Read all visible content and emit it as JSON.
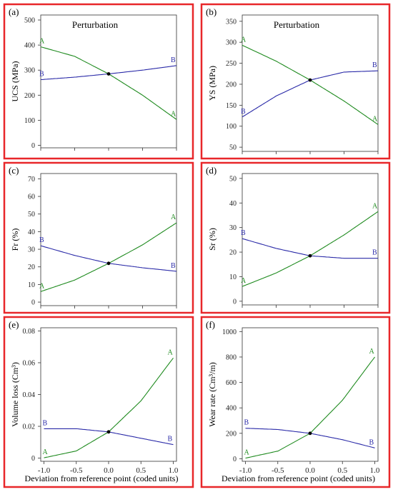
{
  "colors": {
    "frame": "#e8272a",
    "series_A": "#1e8a1e",
    "series_B": "#2a2aa8",
    "axis": "#333333",
    "center_point": "#000000"
  },
  "chart_data": [
    {
      "panel": "(a)",
      "type": "line",
      "title": "Perturbation",
      "xlabel": "",
      "ylabel": "UCS (MPa)",
      "xlim": [
        -1,
        1
      ],
      "ylim": [
        -10,
        520
      ],
      "xticks": [
        -1,
        -0.5,
        0,
        0.5,
        1
      ],
      "xticklabels": [],
      "yticks": [
        0,
        100,
        200,
        300,
        400,
        500
      ],
      "yticklabels": [
        "0",
        "100",
        "200",
        "300",
        "400",
        "500"
      ],
      "center_point": {
        "x": 0,
        "y": 285
      },
      "series": [
        {
          "name": "A",
          "x": [
            -1,
            -0.5,
            0,
            0.5,
            1
          ],
          "y": [
            393,
            355,
            285,
            200,
            103
          ]
        },
        {
          "name": "B",
          "x": [
            -1,
            -0.5,
            0,
            0.5,
            1
          ],
          "y": [
            262,
            272,
            285,
            300,
            318
          ]
        }
      ]
    },
    {
      "panel": "(b)",
      "type": "line",
      "title": "Perturbation",
      "xlabel": "",
      "ylabel": "YS (MPa)",
      "xlim": [
        -1,
        1
      ],
      "ylim": [
        40,
        365
      ],
      "xticks": [
        -1,
        -0.5,
        0,
        0.5,
        1
      ],
      "xticklabels": [],
      "yticks": [
        50,
        100,
        150,
        200,
        250,
        300,
        350
      ],
      "yticklabels": [
        "50",
        "100",
        "150",
        "200",
        "250",
        "300",
        "350"
      ],
      "center_point": {
        "x": 0,
        "y": 210
      },
      "series": [
        {
          "name": "A",
          "x": [
            -1,
            -0.5,
            0,
            0.5,
            1
          ],
          "y": [
            293,
            255,
            210,
            160,
            104
          ]
        },
        {
          "name": "B",
          "x": [
            -1,
            -0.5,
            0,
            0.5,
            1
          ],
          "y": [
            122,
            172,
            210,
            229,
            232
          ]
        }
      ]
    },
    {
      "panel": "(c)",
      "type": "line",
      "title": "",
      "xlabel": "",
      "ylabel": "Fr (%)",
      "xlim": [
        -1,
        1
      ],
      "ylim": [
        -2,
        73
      ],
      "xticks": [
        -1,
        -0.5,
        0,
        0.5,
        1
      ],
      "xticklabels": [],
      "yticks": [
        0,
        10,
        20,
        30,
        40,
        50,
        60,
        70
      ],
      "yticklabels": [
        "0",
        "10",
        "20",
        "30",
        "40",
        "50",
        "60",
        "70"
      ],
      "center_point": {
        "x": 0,
        "y": 22
      },
      "series": [
        {
          "name": "A",
          "x": [
            -1,
            -0.5,
            0,
            0.5,
            1
          ],
          "y": [
            6,
            12.5,
            22,
            32.5,
            45
          ]
        },
        {
          "name": "B",
          "x": [
            -1,
            -0.5,
            0,
            0.5,
            1
          ],
          "y": [
            32,
            26.5,
            22,
            19.5,
            17.5
          ]
        }
      ]
    },
    {
      "panel": "(d)",
      "type": "line",
      "title": "",
      "xlabel": "",
      "ylabel": "Sr (%)",
      "xlim": [
        -1,
        1
      ],
      "ylim": [
        -1.5,
        52
      ],
      "xticks": [
        -1,
        -0.5,
        0,
        0.5,
        1
      ],
      "xticklabels": [],
      "yticks": [
        0,
        10,
        20,
        30,
        40,
        50
      ],
      "yticklabels": [
        "0",
        "10",
        "20",
        "30",
        "40",
        "50"
      ],
      "center_point": {
        "x": 0,
        "y": 18.5
      },
      "series": [
        {
          "name": "A",
          "x": [
            -1,
            -0.5,
            0,
            0.5,
            1
          ],
          "y": [
            6,
            11.5,
            18.5,
            27,
            36.5
          ]
        },
        {
          "name": "B",
          "x": [
            -1,
            -0.5,
            0,
            0.5,
            1
          ],
          "y": [
            25.5,
            21.5,
            18.5,
            17.5,
            17.5
          ]
        }
      ]
    },
    {
      "panel": "(e)",
      "type": "line",
      "title": "",
      "xlabel": "Deviation from reference point (coded units)",
      "ylabel": "Volume loss (Cm³)",
      "xlim": [
        -1.05,
        1.05
      ],
      "ylim": [
        -0.002,
        0.082
      ],
      "xticks": [
        -1,
        -0.5,
        0,
        0.5,
        1
      ],
      "xticklabels": [
        "-1.0",
        "-0.5",
        "0.0",
        "0.5",
        "1.0"
      ],
      "yticks": [
        0,
        0.02,
        0.04,
        0.06,
        0.08
      ],
      "yticklabels": [
        "0",
        "0.02",
        "0.04",
        "0.06",
        "0.08"
      ],
      "center_point": {
        "x": 0,
        "y": 0.0165
      },
      "series": [
        {
          "name": "A",
          "x": [
            -1,
            -0.5,
            0,
            0.5,
            1
          ],
          "y": [
            0.0002,
            0.0045,
            0.0165,
            0.036,
            0.063
          ]
        },
        {
          "name": "B",
          "x": [
            -1,
            -0.5,
            0,
            0.5,
            1
          ],
          "y": [
            0.0185,
            0.0185,
            0.0165,
            0.0125,
            0.0085
          ]
        }
      ]
    },
    {
      "panel": "(f)",
      "type": "line",
      "title": "",
      "xlabel": "Deviation from reference point (coded units)",
      "ylabel": "Wear rate (Cm³/m)",
      "xlim": [
        -1.05,
        1.05
      ],
      "ylim": [
        -20,
        1030
      ],
      "xticks": [
        -1,
        -0.5,
        0,
        0.5,
        1
      ],
      "xticklabels": [
        "-1.0",
        "-0.5",
        "0.0",
        "0.5",
        "1.0"
      ],
      "yticks": [
        0,
        200,
        400,
        600,
        800,
        1000
      ],
      "yticklabels": [
        "0",
        "200",
        "400",
        "600",
        "800",
        "1000"
      ],
      "center_point": {
        "x": 0,
        "y": 200
      },
      "series": [
        {
          "name": "A",
          "x": [
            -1,
            -0.5,
            0,
            0.5,
            1
          ],
          "y": [
            5,
            60,
            200,
            460,
            800
          ]
        },
        {
          "name": "B",
          "x": [
            -1,
            -0.5,
            0,
            0.5,
            1
          ],
          "y": [
            240,
            230,
            200,
            150,
            85
          ]
        }
      ]
    }
  ]
}
